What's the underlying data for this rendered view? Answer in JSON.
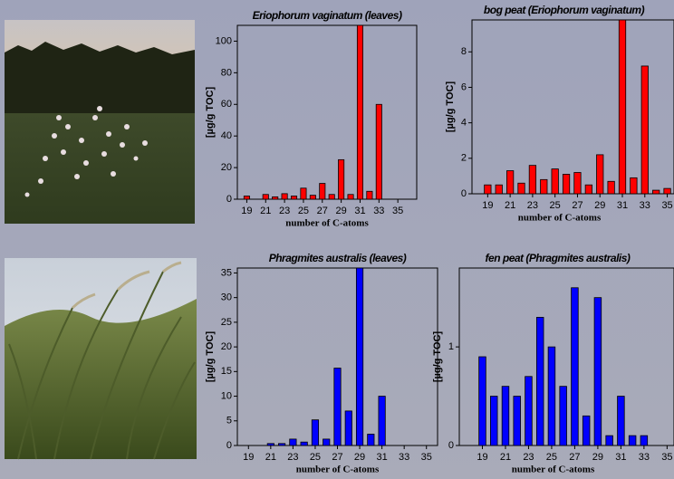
{
  "chart_data": [
    {
      "type": "bar",
      "title": "Eriophorum vaginatum (leaves)",
      "x_label": "number of C-atoms",
      "y_label": "[µg/g TOC]",
      "color": "#ff0000",
      "x": [
        19,
        21,
        22,
        23,
        24,
        25,
        26,
        27,
        28,
        29,
        30,
        31,
        32,
        33
      ],
      "values": [
        2,
        3,
        1.5,
        3.5,
        2,
        7,
        2.5,
        10,
        3,
        25,
        3,
        110,
        5,
        60
      ],
      "xlim": [
        18,
        37
      ],
      "xticks": [
        19,
        21,
        23,
        25,
        27,
        29,
        31,
        33,
        35
      ],
      "ylim": [
        0,
        110
      ],
      "yticks": [
        0,
        20,
        40,
        60,
        80,
        100
      ]
    },
    {
      "type": "bar",
      "title": "bog peat (Eriophorum vaginatum)",
      "x_label": "number of C-atoms",
      "y_label": "[µg/g TOC]",
      "color": "#ff0000",
      "x": [
        19,
        20,
        21,
        22,
        23,
        24,
        25,
        26,
        27,
        28,
        29,
        30,
        31,
        32,
        33,
        34,
        35
      ],
      "values": [
        0.5,
        0.5,
        1.3,
        0.6,
        1.6,
        0.8,
        1.4,
        1.1,
        1.2,
        0.5,
        2.2,
        0.7,
        9.8,
        0.9,
        7.2,
        0.2,
        0.3
      ],
      "xlim": [
        17.6,
        35.6
      ],
      "xticks": [
        19,
        21,
        23,
        25,
        27,
        29,
        31,
        33,
        35
      ],
      "ylim": [
        0,
        9.8
      ],
      "yticks": [
        0,
        2,
        4,
        6,
        8
      ]
    },
    {
      "type": "bar",
      "title": "Phragmites australis (leaves)",
      "x_label": "number of C-atoms",
      "y_label": "[µg/g TOC]",
      "color": "#0000ff",
      "x": [
        21,
        22,
        23,
        24,
        25,
        26,
        27,
        28,
        29,
        30,
        31
      ],
      "values": [
        0.4,
        0.4,
        1.3,
        0.7,
        5.2,
        1.3,
        15.7,
        7,
        36,
        2.3,
        10
      ],
      "xlim": [
        18,
        36
      ],
      "xticks": [
        19,
        21,
        23,
        25,
        27,
        29,
        31,
        33,
        35
      ],
      "ylim": [
        0,
        36
      ],
      "yticks": [
        0,
        5,
        10,
        15,
        20,
        25,
        30,
        35
      ]
    },
    {
      "type": "bar",
      "title": "fen peat (Phragmites australis)",
      "x_label": "number of C-atoms",
      "y_label": "[µg/g TOC]",
      "color": "#0000ff",
      "x": [
        19,
        20,
        21,
        22,
        23,
        24,
        25,
        26,
        27,
        28,
        29,
        30,
        31,
        32,
        33
      ],
      "values": [
        0.9,
        0.5,
        0.6,
        0.5,
        0.7,
        1.3,
        1.0,
        0.6,
        1.6,
        0.3,
        1.5,
        0.1,
        0.5,
        0.1,
        0.1
      ],
      "xlim": [
        17,
        35.6
      ],
      "xticks": [
        19,
        21,
        23,
        25,
        27,
        29,
        31,
        33,
        35
      ],
      "ylim": [
        0,
        1.8
      ],
      "yticks": [
        0,
        1
      ]
    }
  ]
}
